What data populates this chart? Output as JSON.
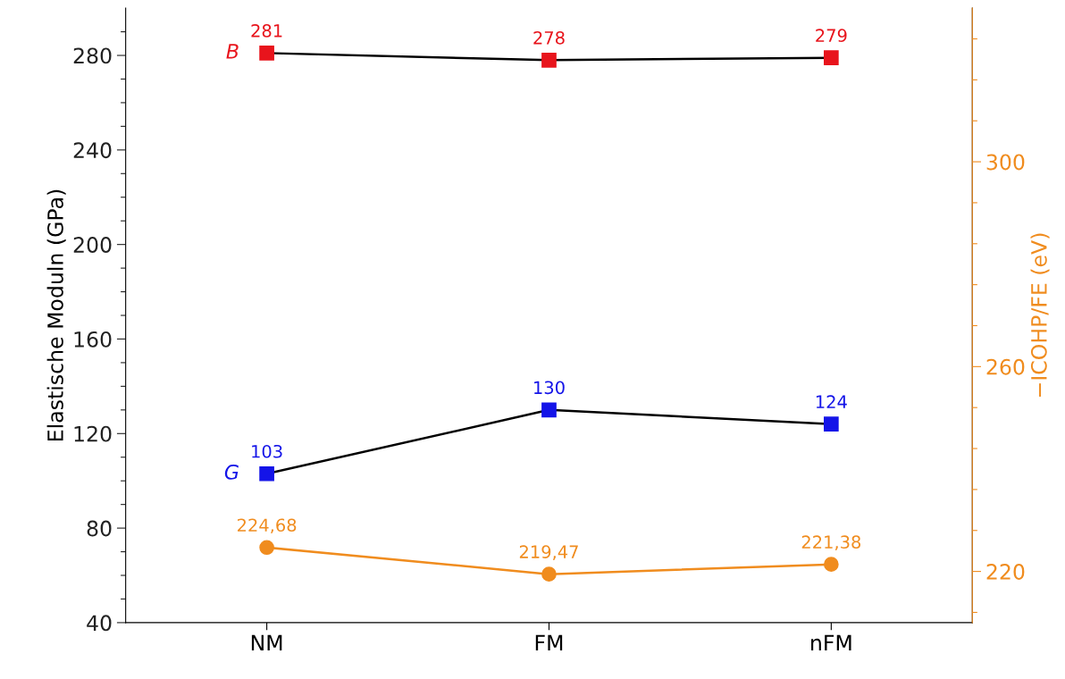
{
  "chart_data": {
    "type": "line",
    "categories": [
      "NM",
      "FM",
      "nFM"
    ],
    "ylabel": "Elastische Moduln (GPa)",
    "y2label": "−ICOHP/FE (eV)",
    "ylim": [
      40,
      300
    ],
    "yticks": [
      40,
      {
        "value": 50,
        "label": null
      },
      {
        "value": 60,
        "label": null
      },
      {
        "value": 70,
        "label": null
      },
      80,
      {
        "value": 90,
        "label": null
      },
      {
        "value": 100,
        "label": null
      },
      {
        "value": 110,
        "label": null
      },
      120,
      {
        "value": 130,
        "label": null
      },
      {
        "value": 140,
        "label": null
      },
      {
        "value": 150,
        "label": null
      },
      160,
      {
        "value": 170,
        "label": null
      },
      {
        "value": 180,
        "label": null
      },
      {
        "value": 190,
        "label": null
      },
      200,
      {
        "value": 210,
        "label": null
      },
      {
        "value": 220,
        "label": null
      },
      {
        "value": 230,
        "label": null
      },
      240,
      {
        "value": 250,
        "label": null
      },
      {
        "value": 260,
        "label": null
      },
      {
        "value": 270,
        "label": null
      },
      280,
      {
        "value": 290,
        "label": null
      }
    ],
    "y2lim": [
      210,
      330
    ],
    "y2ticks": [
      {
        "value": 212,
        "label": null
      },
      220,
      {
        "value": 228,
        "label": null
      },
      {
        "value": 236,
        "label": null
      },
      {
        "value": 244,
        "label": null
      },
      {
        "value": 252,
        "label": null
      },
      260,
      {
        "value": 268,
        "label": null
      },
      {
        "value": 276,
        "label": null
      },
      {
        "value": 284,
        "label": null
      },
      {
        "value": 292,
        "label": null
      },
      300,
      {
        "value": 308,
        "label": null
      },
      {
        "value": 316,
        "label": null
      },
      {
        "value": 324,
        "label": null
      }
    ],
    "grid": false,
    "legend": false,
    "line_style": "solid",
    "series": [
      {
        "name": "B",
        "color": "#000000",
        "colors": [
          "#e8141c",
          "#e8141c",
          "#e8141c"
        ],
        "marker": "square",
        "values": [
          281,
          278,
          279
        ],
        "data_labels": true
      },
      {
        "name": "G",
        "color": "#000000",
        "colors": [
          "#1414e8",
          "#1414e8",
          "#1414e8"
        ],
        "marker": "square",
        "values": [
          103,
          130,
          124
        ],
        "data_labels": true
      },
      {
        "color": "#f08c1e",
        "marker": "circle",
        "axis": "y2",
        "values": [
          224.68,
          219.47,
          221.38
        ],
        "value_labels": [
          "224,68",
          "219,47",
          "221,38"
        ]
      }
    ]
  }
}
